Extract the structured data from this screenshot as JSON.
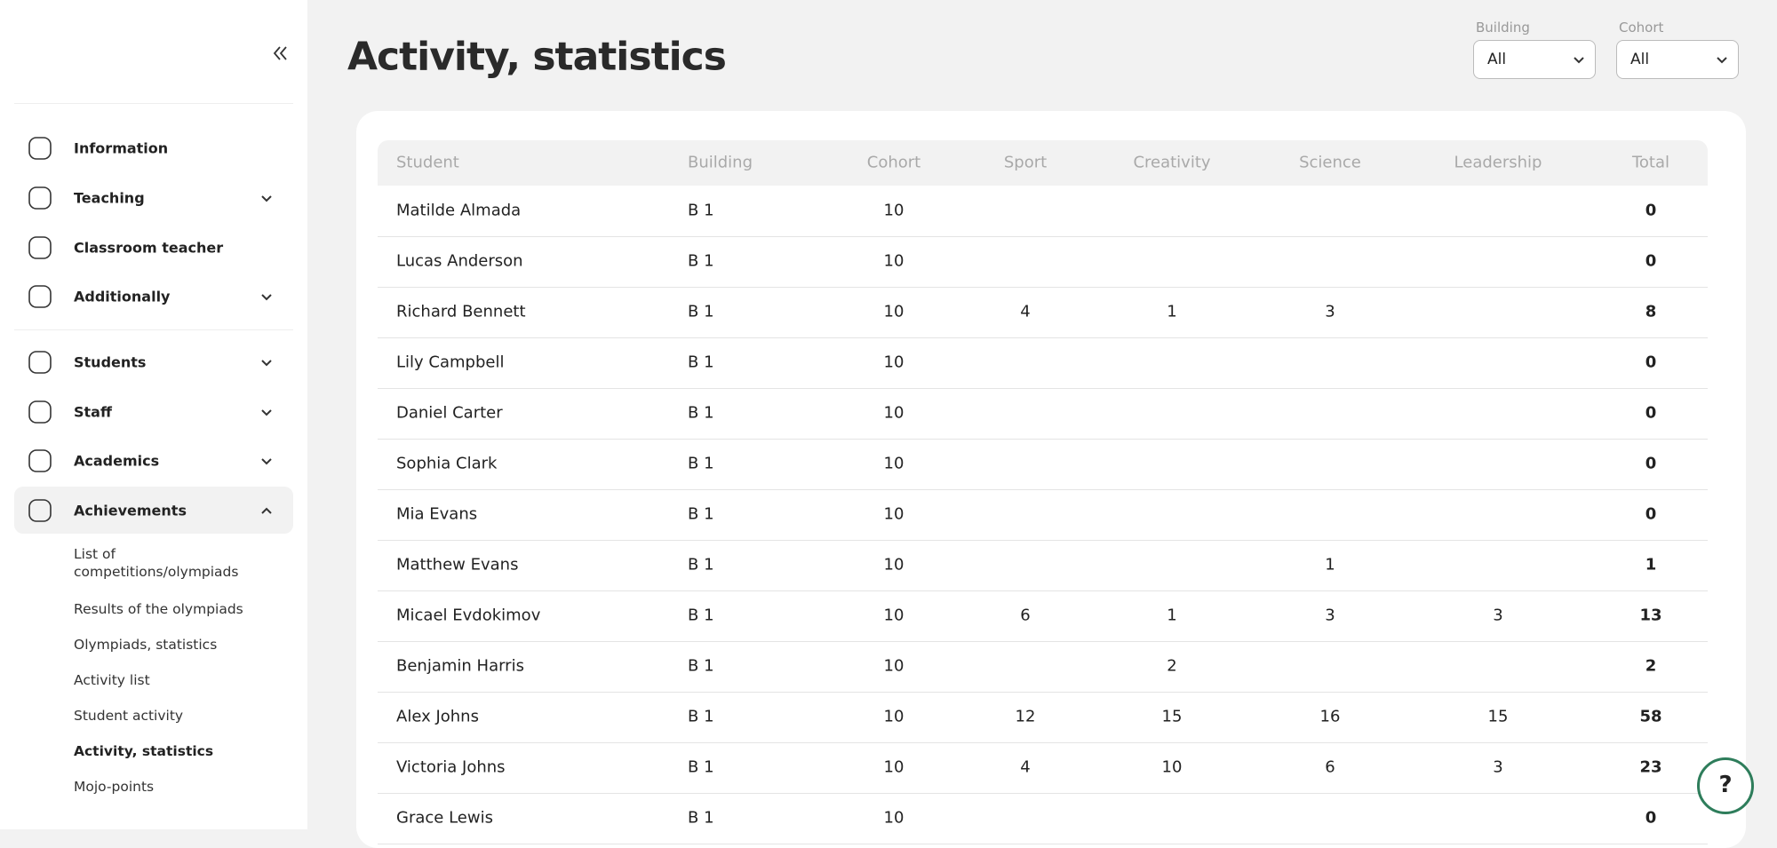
{
  "sidebar": {
    "nav": [
      {
        "label": "Information"
      },
      {
        "label": "Teaching",
        "chevron": "down"
      },
      {
        "label": "Classroom teacher"
      },
      {
        "label": "Additionally",
        "chevron": "down"
      },
      {
        "label": "Students",
        "chevron": "down"
      },
      {
        "label": "Staff",
        "chevron": "down"
      },
      {
        "label": "Academics",
        "chevron": "down"
      },
      {
        "label": "Achievements",
        "chevron": "up",
        "active": true
      }
    ],
    "subnav": [
      {
        "label": "List of competitions/olympiads"
      },
      {
        "label": "Results of the olympiads"
      },
      {
        "label": "Olympiads, statistics"
      },
      {
        "label": "Activity list"
      },
      {
        "label": "Student activity"
      },
      {
        "label": "Activity, statistics",
        "active": true
      },
      {
        "label": "Mojo-points"
      }
    ]
  },
  "header": {
    "title": "Activity, statistics",
    "filters": [
      {
        "label": "Building",
        "value": "All"
      },
      {
        "label": "Cohort",
        "value": "All"
      }
    ]
  },
  "table": {
    "columns": [
      "Student",
      "Building",
      "Cohort",
      "Sport",
      "Creativity",
      "Science",
      "Leadership",
      "Total"
    ],
    "rows": [
      [
        "Matilde Almada",
        "B 1",
        10,
        null,
        null,
        null,
        null,
        0
      ],
      [
        "Lucas Anderson",
        "B 1",
        10,
        null,
        null,
        null,
        null,
        0
      ],
      [
        "Richard Bennett",
        "B 1",
        10,
        4,
        1,
        3,
        null,
        8
      ],
      [
        "Lily Campbell",
        "B 1",
        10,
        null,
        null,
        null,
        null,
        0
      ],
      [
        "Daniel Carter",
        "B 1",
        10,
        null,
        null,
        null,
        null,
        0
      ],
      [
        "Sophia Clark",
        "B 1",
        10,
        null,
        null,
        null,
        null,
        0
      ],
      [
        "Mia Evans",
        "B 1",
        10,
        null,
        null,
        null,
        null,
        0
      ],
      [
        "Matthew Evans",
        "B 1",
        10,
        null,
        null,
        1,
        null,
        1
      ],
      [
        "Micael Evdokimov",
        "B 1",
        10,
        6,
        1,
        3,
        3,
        13
      ],
      [
        "Benjamin Harris",
        "B 1",
        10,
        null,
        2,
        null,
        null,
        2
      ],
      [
        "Alex Johns",
        "B 1",
        10,
        12,
        15,
        16,
        15,
        58
      ],
      [
        "Victoria Johns",
        "B 1",
        10,
        4,
        10,
        6,
        3,
        23
      ],
      [
        "Grace Lewis",
        "B 1",
        10,
        null,
        null,
        null,
        null,
        0
      ]
    ]
  },
  "help": {
    "label": "?"
  }
}
